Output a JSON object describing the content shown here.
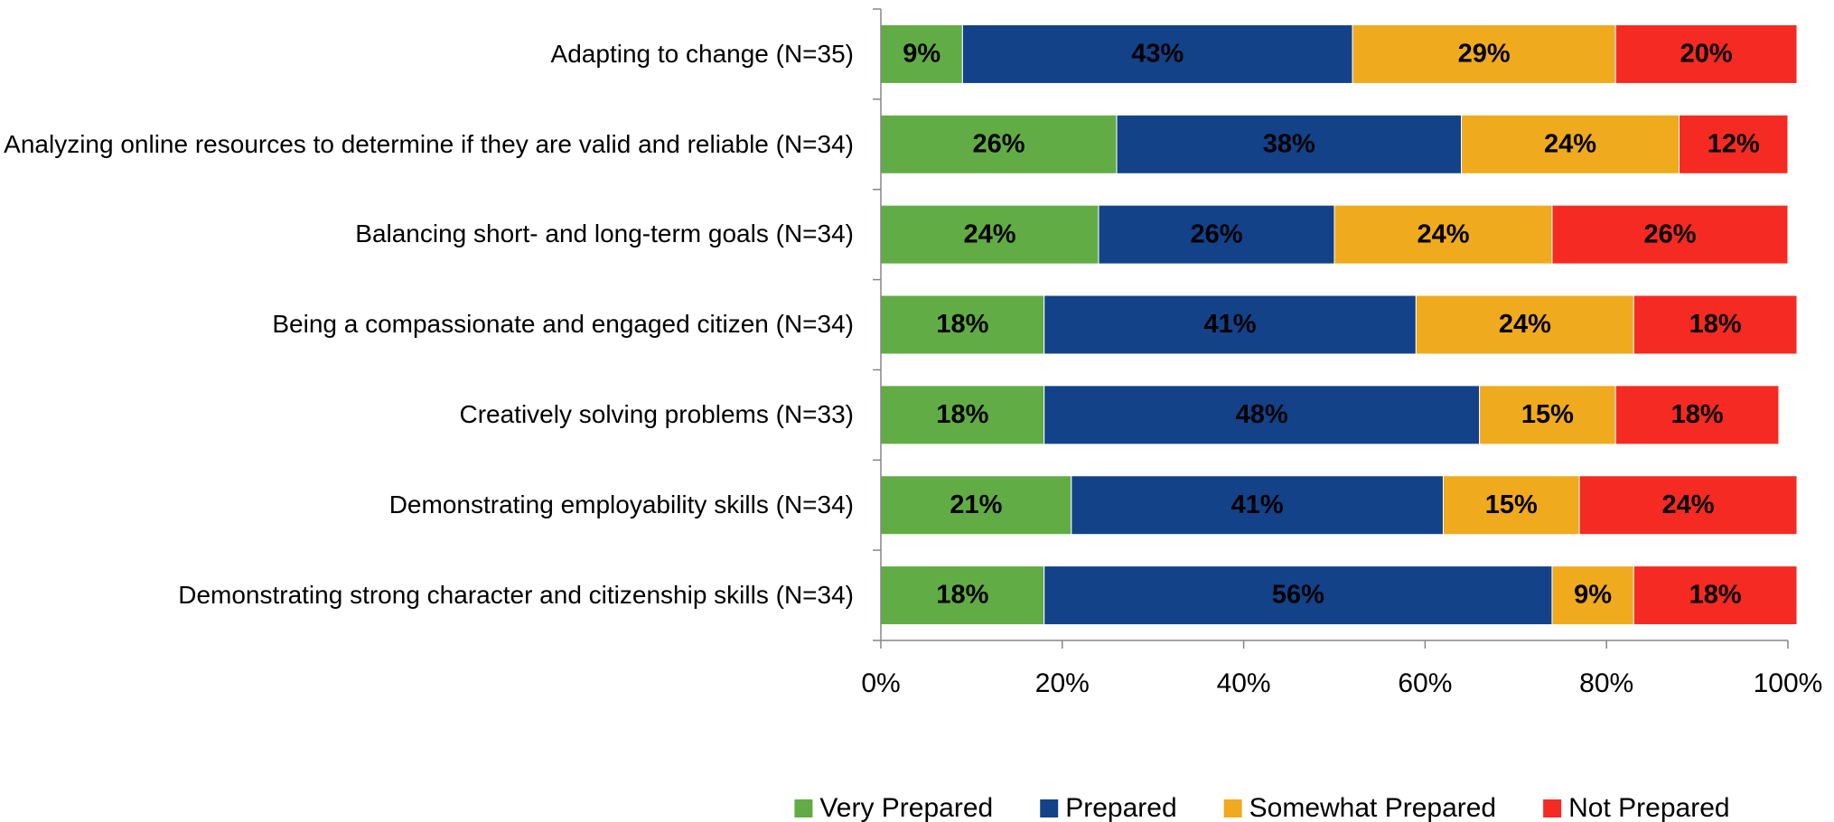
{
  "chart_data": {
    "type": "stacked_bar_horizontal",
    "categories": [
      "Adapting to change (N=35)",
      "Analyzing online resources to determine if they are valid and reliable (N=34)",
      "Balancing short- and long-term goals (N=34)",
      "Being a compassionate and engaged citizen (N=34)",
      "Creatively solving problems (N=33)",
      "Demonstrating employability skills (N=34)",
      "Demonstrating strong character and citizenship skills (N=34)"
    ],
    "series": [
      {
        "name": "Very Prepared",
        "color": "#62ac46",
        "label_color": "#000000",
        "values": [
          9,
          26,
          24,
          18,
          18,
          21,
          18
        ],
        "value_labels": [
          "9%",
          "26%",
          "24%",
          "18%",
          "18%",
          "21%",
          "18%"
        ]
      },
      {
        "name": "Prepared",
        "color": "#134289",
        "label_color": "#ffffff",
        "values": [
          43,
          38,
          26,
          41,
          48,
          41,
          56
        ],
        "value_labels": [
          "43%",
          "38%",
          "26%",
          "41%",
          "48%",
          "41%",
          "56%"
        ]
      },
      {
        "name": "Somewhat Prepared",
        "color": "#efaa1e",
        "label_color": "#000000",
        "values": [
          29,
          24,
          24,
          24,
          15,
          15,
          9
        ],
        "value_labels": [
          "29%",
          "24%",
          "24%",
          "24%",
          "15%",
          "15%",
          "9%"
        ]
      },
      {
        "name": "Not Prepared",
        "color": "#f52a22",
        "label_color": "#000000",
        "values": [
          20,
          12,
          26,
          18,
          18,
          24,
          18
        ],
        "value_labels": [
          "20%",
          "12%",
          "26%",
          "18%",
          "18%",
          "24%",
          "18%"
        ]
      }
    ],
    "xlim": [
      0,
      100
    ],
    "xticks": [
      {
        "value": 0,
        "label": "0%"
      },
      {
        "value": 20,
        "label": "20%"
      },
      {
        "value": 40,
        "label": "40%"
      },
      {
        "value": 60,
        "label": "60%"
      },
      {
        "value": 80,
        "label": "80%"
      },
      {
        "value": 100,
        "label": "100%"
      }
    ],
    "legend": "bottom"
  }
}
